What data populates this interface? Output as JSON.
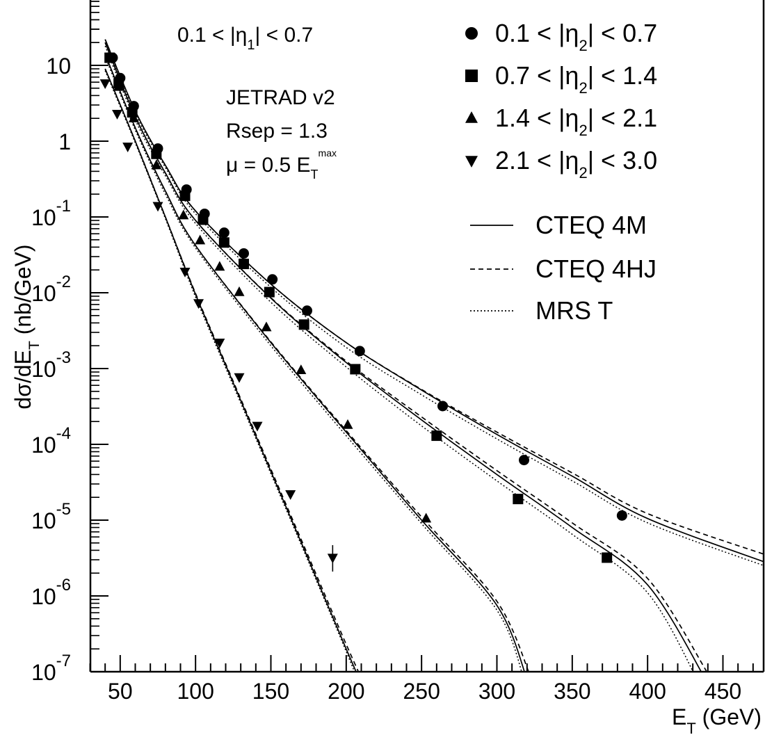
{
  "chart_data": {
    "type": "scatter",
    "xlabel": "E_T (GeV)",
    "ylabel": "dσ/dE_T (nb/GeV)",
    "xlim": [
      30,
      480
    ],
    "ylim": [
      1e-07,
      100
    ],
    "log_y": true,
    "x_ticks": [
      "50",
      "100",
      "150",
      "200",
      "250",
      "300",
      "350",
      "400",
      "450"
    ],
    "y_ticks": [
      {
        "base": "10",
        "exp": "-7"
      },
      {
        "base": "10",
        "exp": "-6"
      },
      {
        "base": "10",
        "exp": "-5"
      },
      {
        "base": "10",
        "exp": "-4"
      },
      {
        "base": "10",
        "exp": "-3"
      },
      {
        "base": "10",
        "exp": "-2"
      },
      {
        "base": "10",
        "exp": "-1"
      },
      {
        "base": "1",
        "exp": ""
      },
      {
        "base": "10",
        "exp": ""
      }
    ],
    "annotations": {
      "eta1_cut": {
        "pre": "0.1 < |η",
        "sub": "1",
        "post": "| < 0.7"
      },
      "generator": "JETRAD v2",
      "rsep": "Rsep = 1.3",
      "scale": {
        "pre": "μ = 0.5 E",
        "sub": "T",
        "sup": "max"
      }
    },
    "series": [
      {
        "name": {
          "pre": "0.1 < |η",
          "sub": "2",
          "post": "| < 0.7"
        },
        "marker": "circle",
        "x": [
          45,
          50,
          59,
          75,
          94,
          106,
          119,
          132,
          151,
          174,
          209,
          264,
          318,
          383
        ],
        "y": [
          12.6,
          6.8,
          2.9,
          0.8,
          0.23,
          0.11,
          0.062,
          0.033,
          0.015,
          0.0058,
          0.0017,
          0.00032,
          6.2e-05,
          1.15e-05
        ],
        "fit_cteq4m": [
          [
            40,
            22
          ],
          [
            60,
            2.5
          ],
          [
            80,
            0.48
          ],
          [
            100,
            0.12
          ],
          [
            150,
            0.013
          ],
          [
            200,
            0.0022
          ],
          [
            250,
            0.00052
          ],
          [
            300,
            0.000135
          ],
          [
            350,
            3.8e-05
          ],
          [
            400,
            1.05e-05
          ],
          [
            480,
            2.7e-06
          ]
        ],
        "fit_cteq4hj": [
          [
            40,
            22
          ],
          [
            60,
            2.5
          ],
          [
            80,
            0.48
          ],
          [
            100,
            0.12
          ],
          [
            150,
            0.013
          ],
          [
            200,
            0.0022
          ],
          [
            250,
            0.00053
          ],
          [
            300,
            0.000145
          ],
          [
            350,
            4.2e-05
          ],
          [
            400,
            1.22e-05
          ],
          [
            480,
            3.4e-06
          ]
        ],
        "fit_mrst": [
          [
            40,
            20
          ],
          [
            60,
            2.3
          ],
          [
            80,
            0.45
          ],
          [
            100,
            0.11
          ],
          [
            150,
            0.0118
          ],
          [
            200,
            0.0019
          ],
          [
            250,
            0.00045
          ],
          [
            300,
            0.000118
          ],
          [
            350,
            3.3e-05
          ],
          [
            400,
            9.2e-06
          ],
          [
            480,
            2.4e-06
          ]
        ]
      },
      {
        "name": {
          "pre": "0.7 < |η",
          "sub": "2",
          "post": "| < 1.4"
        },
        "marker": "square",
        "x": [
          43,
          49,
          58,
          74,
          93,
          105,
          119,
          132,
          149,
          172,
          206,
          260,
          314,
          373
        ],
        "y": [
          12.6,
          5.8,
          2.4,
          0.68,
          0.19,
          0.092,
          0.046,
          0.024,
          0.0102,
          0.0038,
          0.00098,
          0.00013,
          1.9e-05,
          3.2e-06
        ],
        "fit_cteq4m": [
          [
            40,
            20
          ],
          [
            60,
            2.1
          ],
          [
            80,
            0.38
          ],
          [
            100,
            0.09
          ],
          [
            150,
            0.0085
          ],
          [
            200,
            0.0012
          ],
          [
            250,
            0.00021
          ],
          [
            300,
            4e-05
          ],
          [
            350,
            8e-06
          ],
          [
            400,
            1.4e-06
          ],
          [
            440,
            7e-08
          ]
        ],
        "fit_cteq4hj": [
          [
            40,
            20
          ],
          [
            60,
            2.1
          ],
          [
            80,
            0.38
          ],
          [
            100,
            0.09
          ],
          [
            150,
            0.0086
          ],
          [
            200,
            0.00125
          ],
          [
            250,
            0.00023
          ],
          [
            300,
            4.5e-05
          ],
          [
            350,
            9.2e-06
          ],
          [
            400,
            1.7e-06
          ],
          [
            440,
            9.5e-08
          ]
        ],
        "fit_mrst": [
          [
            40,
            18
          ],
          [
            60,
            1.9
          ],
          [
            80,
            0.35
          ],
          [
            100,
            0.082
          ],
          [
            150,
            0.0075
          ],
          [
            200,
            0.00105
          ],
          [
            250,
            0.000175
          ],
          [
            300,
            3.3e-05
          ],
          [
            350,
            6.5e-06
          ],
          [
            400,
            1.1e-06
          ],
          [
            435,
            6.5e-08
          ]
        ]
      },
      {
        "name": {
          "pre": "1.4 < |η",
          "sub": "2",
          "post": "| < 2.1"
        },
        "marker": "triangle-up",
        "x": [
          49,
          59,
          74,
          92,
          103,
          116,
          129,
          147,
          170,
          201,
          253
        ],
        "y": [
          5.2,
          2.0,
          0.48,
          0.105,
          0.049,
          0.022,
          0.0102,
          0.0035,
          0.00095,
          0.00018,
          1.05e-05
        ],
        "fit_cteq4m": [
          [
            40,
            14
          ],
          [
            60,
            1.5
          ],
          [
            80,
            0.22
          ],
          [
            100,
            0.042
          ],
          [
            150,
            0.0022
          ],
          [
            200,
            0.000145
          ],
          [
            250,
            1e-05
          ],
          [
            300,
            7.5e-07
          ],
          [
            320,
            8e-08
          ]
        ],
        "fit_cteq4hj": [
          [
            40,
            14
          ],
          [
            60,
            1.5
          ],
          [
            80,
            0.22
          ],
          [
            100,
            0.042
          ],
          [
            150,
            0.00225
          ],
          [
            200,
            0.000152
          ],
          [
            250,
            1.1e-05
          ],
          [
            300,
            8.5e-07
          ],
          [
            322,
            9e-08
          ]
        ],
        "fit_mrst": [
          [
            40,
            13
          ],
          [
            60,
            1.4
          ],
          [
            80,
            0.2
          ],
          [
            100,
            0.039
          ],
          [
            150,
            0.002
          ],
          [
            200,
            0.00013
          ],
          [
            250,
            9e-06
          ],
          [
            300,
            6.5e-07
          ],
          [
            318,
            8e-08
          ]
        ]
      },
      {
        "name": {
          "pre": "2.1 < |η",
          "sub": "2",
          "post": "| < 3.0"
        },
        "marker": "triangle-down",
        "x": [
          40,
          48,
          55,
          75,
          93,
          102,
          116,
          129,
          141,
          163,
          191
        ],
        "y": [
          5.8,
          2.3,
          0.85,
          0.14,
          0.019,
          0.0073,
          0.0022,
          0.00077,
          0.000176,
          2.2e-05,
          3.2e-06
        ],
        "fit_cteq4m": [
          [
            40,
            9
          ],
          [
            60,
            1.0
          ],
          [
            80,
            0.1
          ],
          [
            100,
            0.0095
          ],
          [
            125,
            0.00065
          ],
          [
            150,
            4.4e-05
          ],
          [
            175,
            3e-06
          ],
          [
            200,
            2e-07
          ],
          [
            218,
            3e-08
          ]
        ],
        "fit_cteq4hj": [
          [
            40,
            9
          ],
          [
            60,
            1.0
          ],
          [
            80,
            0.1
          ],
          [
            100,
            0.0098
          ],
          [
            125,
            0.00068
          ],
          [
            150,
            4.7e-05
          ],
          [
            175,
            3.3e-06
          ],
          [
            200,
            2.3e-07
          ],
          [
            220,
            3e-08
          ]
        ],
        "fit_mrst": [
          [
            40,
            8.5
          ],
          [
            60,
            0.95
          ],
          [
            80,
            0.095
          ],
          [
            100,
            0.0088
          ],
          [
            125,
            0.0006
          ],
          [
            150,
            4.1e-05
          ],
          [
            175,
            2.8e-06
          ],
          [
            200,
            1.85e-07
          ],
          [
            216,
            3e-08
          ]
        ]
      }
    ],
    "legend_lines": [
      {
        "label": "CTEQ 4M",
        "style": "solid"
      },
      {
        "label": "CTEQ 4HJ",
        "style": "dashed"
      },
      {
        "label": "MRS  T",
        "style": "dotted"
      }
    ]
  }
}
